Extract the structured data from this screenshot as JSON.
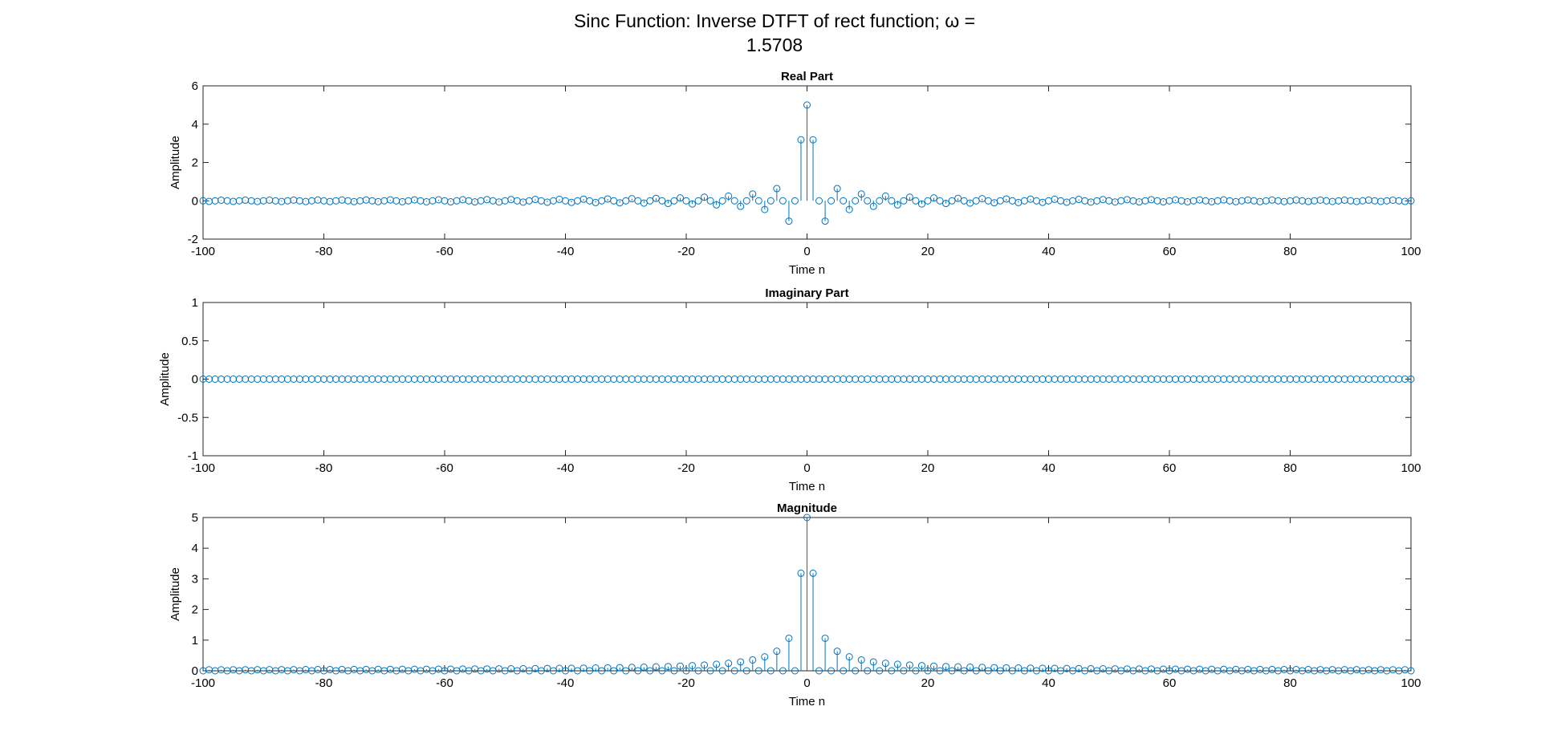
{
  "figure": {
    "title_line1": "Sinc Function: Inverse DTFT of rect function; ω =",
    "title_line2": "1.5708"
  },
  "colors": {
    "stem": "#0072BD",
    "axes": "#262626"
  },
  "chart_data": [
    {
      "type": "stem",
      "title": "Real Part",
      "xlabel": "Time n",
      "ylabel": "Amplitude",
      "xlim": [
        -100,
        100
      ],
      "ylim": [
        -2,
        6
      ],
      "xticks": [
        -100,
        -80,
        -60,
        -40,
        -20,
        0,
        20,
        40,
        60,
        80,
        100
      ],
      "yticks": [
        -2,
        0,
        2,
        4,
        6
      ],
      "series": [
        {
          "formula": "sin(1.5708*n)/(pi*n) * 5/(1/pi)",
          "n_range": [
            -100,
            100
          ]
        }
      ],
      "sample_values": {
        "0": 5.0,
        "1": 3.18,
        "-1": 3.18,
        "3": -1.06,
        "-3": -1.06,
        "5": 0.64,
        "-5": 0.64
      }
    },
    {
      "type": "stem",
      "title": "Imaginary Part",
      "xlabel": "Time n",
      "ylabel": "Amplitude",
      "xlim": [
        -100,
        100
      ],
      "ylim": [
        -1,
        1
      ],
      "xticks": [
        -100,
        -80,
        -60,
        -40,
        -20,
        0,
        20,
        40,
        60,
        80,
        100
      ],
      "yticks": [
        -1,
        -0.5,
        0,
        0.5,
        1
      ],
      "series": [
        {
          "value_all": 0,
          "n_range": [
            -100,
            100
          ]
        }
      ]
    },
    {
      "type": "stem",
      "title": "Magnitude",
      "xlabel": "Time n",
      "ylabel": "Amplitude",
      "xlim": [
        -100,
        100
      ],
      "ylim": [
        0,
        5
      ],
      "xticks": [
        -100,
        -80,
        -60,
        -40,
        -20,
        0,
        20,
        40,
        60,
        80,
        100
      ],
      "yticks": [
        0,
        1,
        2,
        3,
        4,
        5
      ],
      "series": [
        {
          "formula": "abs(real part)",
          "n_range": [
            -100,
            100
          ]
        }
      ],
      "sample_values": {
        "0": 5.0,
        "1": 3.18,
        "-1": 3.18,
        "3": 1.06,
        "-3": 1.06,
        "5": 0.64,
        "-5": 0.64
      }
    }
  ]
}
